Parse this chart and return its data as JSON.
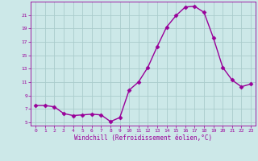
{
  "x": [
    0,
    1,
    2,
    3,
    4,
    5,
    6,
    7,
    8,
    9,
    10,
    11,
    12,
    13,
    14,
    15,
    16,
    17,
    18,
    19,
    20,
    21,
    22,
    23
  ],
  "y": [
    7.5,
    7.5,
    7.3,
    6.3,
    6.0,
    6.1,
    6.2,
    6.1,
    5.1,
    5.7,
    9.8,
    11.0,
    13.2,
    16.3,
    19.2,
    20.9,
    22.2,
    22.3,
    21.4,
    17.6,
    13.2,
    11.3,
    10.3,
    10.7
  ],
  "line_color": "#990099",
  "marker": "D",
  "marker_size": 2.5,
  "bg_color": "#cce8e8",
  "grid_color": "#aacccc",
  "xlabel": "Windchill (Refroidissement éolien,°C)",
  "xlabel_color": "#990099",
  "tick_color": "#990099",
  "ylim": [
    4.5,
    23.0
  ],
  "xlim": [
    -0.5,
    23.5
  ],
  "yticks": [
    5,
    7,
    9,
    11,
    13,
    15,
    17,
    19,
    21
  ],
  "xticks": [
    0,
    1,
    2,
    3,
    4,
    5,
    6,
    7,
    8,
    9,
    10,
    11,
    12,
    13,
    14,
    15,
    16,
    17,
    18,
    19,
    20,
    21,
    22,
    23
  ],
  "font": "monospace"
}
